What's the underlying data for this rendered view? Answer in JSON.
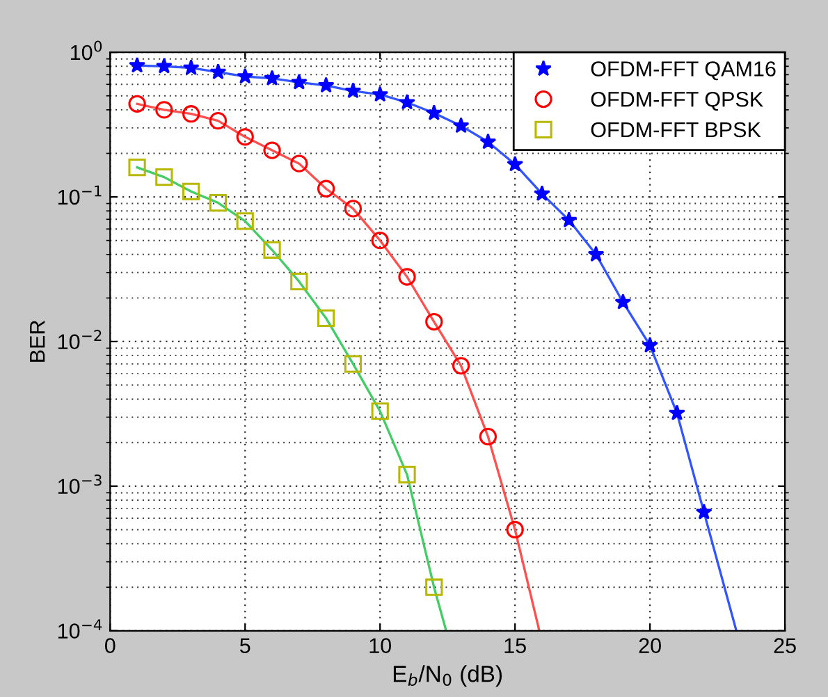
{
  "chart_data": {
    "type": "scatter",
    "xlabel": "E$_{b}$/N$_{0}$ (dB)",
    "ylabel": "BER",
    "log": "y",
    "grid": true,
    "legend": "top right",
    "xlim": [
      0,
      25
    ],
    "xticks": [
      0,
      5,
      10,
      15,
      20,
      25
    ],
    "ylim": [
      0.0001,
      1
    ],
    "yticks": [
      {
        "value": 0.0001,
        "label": "10$^{−4}$"
      },
      {
        "value": 0.001,
        "label": "10$^{−3}$"
      },
      {
        "value": 0.01,
        "label": "10$^{−2}$"
      },
      {
        "value": 0.1,
        "label": "10$^{−1}$"
      },
      {
        "value": 1,
        "label": "10$^{0}$"
      }
    ],
    "series": [
      {
        "type": "line",
        "color": "#3355ff",
        "marker": "none",
        "x": [
          1,
          2,
          3,
          4,
          5,
          6,
          7,
          8,
          9,
          10,
          11,
          12,
          13,
          14,
          15,
          16,
          17,
          18,
          19,
          20,
          21,
          22,
          23.2
        ],
        "values": [
          0.81,
          0.8,
          0.78,
          0.73,
          0.68,
          0.66,
          0.62,
          0.59,
          0.54,
          0.51,
          0.45,
          0.38,
          0.31,
          0.24,
          0.168,
          0.105,
          0.069,
          0.04,
          0.0187,
          0.0094,
          0.0032,
          0.00066,
          0.0001
        ]
      },
      {
        "type": "line",
        "color": "#ff5050",
        "marker": "none",
        "x": [
          1,
          2,
          3,
          4,
          5,
          6,
          7,
          8,
          9,
          10,
          11,
          12,
          13,
          14,
          15,
          15.9
        ],
        "values": [
          0.44,
          0.4,
          0.375,
          0.336,
          0.26,
          0.21,
          0.17,
          0.114,
          0.083,
          0.05,
          0.028,
          0.0137,
          0.0068,
          0.0022,
          0.0005,
          0.0001
        ]
      },
      {
        "type": "line",
        "color": "#44cc66",
        "marker": "none",
        "x": [
          1,
          2,
          3,
          4,
          5,
          6,
          7,
          8,
          9,
          10,
          11,
          12,
          12.45
        ],
        "values": [
          0.16,
          0.137,
          0.109,
          0.091,
          0.068,
          0.043,
          0.026,
          0.0145,
          0.007,
          0.0033,
          0.0012,
          0.0002,
          0.0001
        ]
      },
      {
        "name": "OFDM-FFT QAM16",
        "color": "#0000ff",
        "marker": "star",
        "x": [
          1,
          2,
          3,
          4,
          5,
          6,
          7,
          8,
          9,
          10,
          11,
          12,
          13,
          14,
          15,
          16,
          17,
          18,
          19,
          20,
          21,
          22
        ],
        "values": [
          0.81,
          0.8,
          0.78,
          0.73,
          0.68,
          0.66,
          0.62,
          0.59,
          0.54,
          0.51,
          0.45,
          0.38,
          0.31,
          0.24,
          0.168,
          0.105,
          0.069,
          0.04,
          0.0187,
          0.0094,
          0.0032,
          0.00066
        ]
      },
      {
        "name": "OFDM-FFT QPSK",
        "color": "#ff0000",
        "marker": "circle",
        "x": [
          1,
          2,
          3,
          4,
          5,
          6,
          7,
          8,
          9,
          10,
          11,
          12,
          13,
          14,
          15
        ],
        "values": [
          0.44,
          0.4,
          0.375,
          0.336,
          0.26,
          0.21,
          0.17,
          0.114,
          0.083,
          0.05,
          0.028,
          0.0137,
          0.0068,
          0.0022,
          0.0005
        ]
      },
      {
        "name": "OFDM-FFT BPSK",
        "color": "#b8b800",
        "marker": "square",
        "x": [
          1,
          2,
          3,
          4,
          5,
          6,
          7,
          8,
          9,
          10,
          11,
          12
        ],
        "values": [
          0.16,
          0.137,
          0.109,
          0.091,
          0.068,
          0.043,
          0.026,
          0.0145,
          0.007,
          0.0033,
          0.0012,
          0.0002
        ]
      }
    ]
  }
}
